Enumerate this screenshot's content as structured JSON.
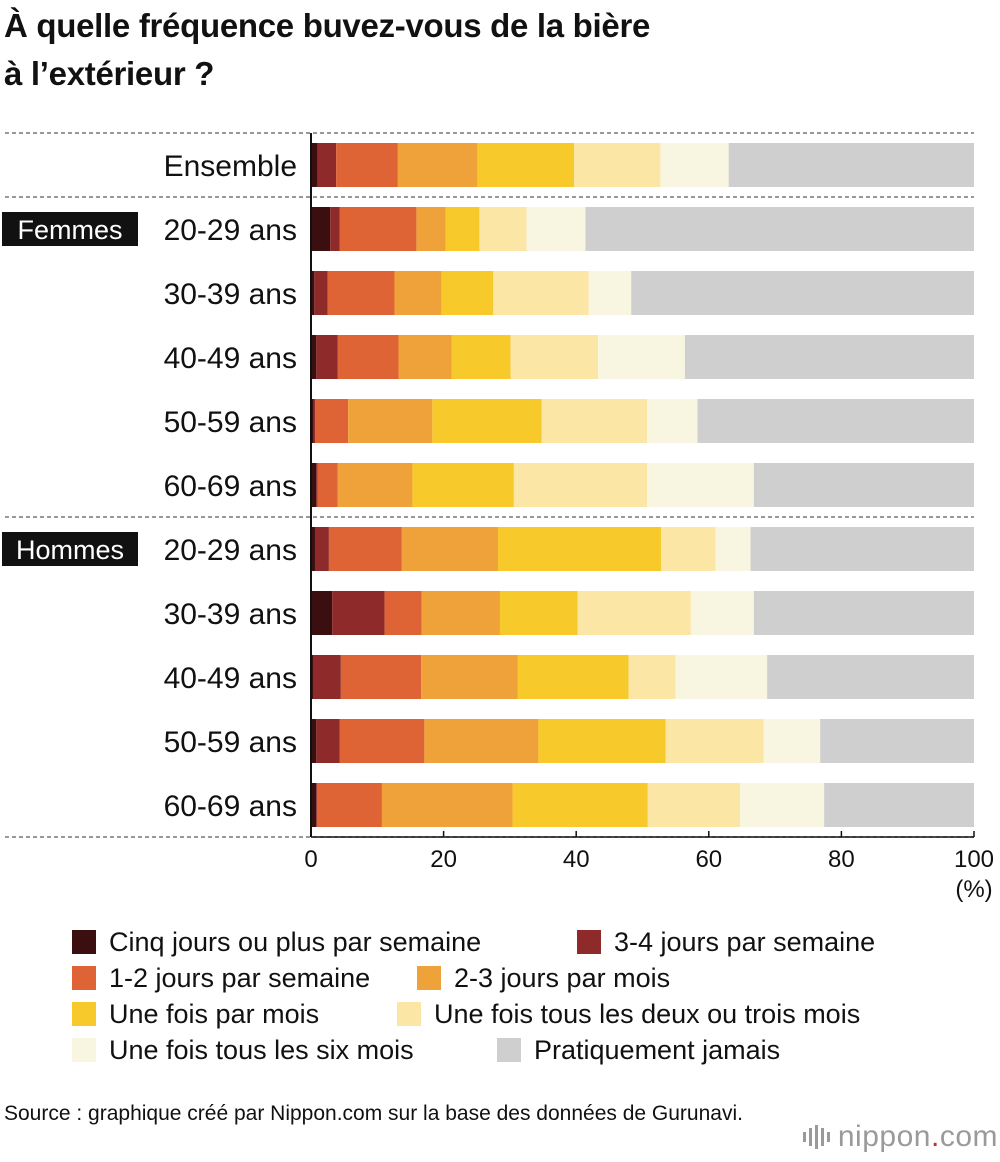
{
  "title_lines": [
    "À quelle fréquence buvez-vous de la bière",
    "à l’extérieur ?"
  ],
  "groups": [
    {
      "label": "Femmes",
      "first_row": 1,
      "last_row": 5
    },
    {
      "label": "Hommes",
      "first_row": 6,
      "last_row": 10
    }
  ],
  "chart_data": {
    "type": "bar",
    "orientation": "horizontal",
    "stacked": true,
    "title": "À quelle fréquence buvez-vous de la bière à l’extérieur ?",
    "categories": [
      "Ensemble",
      "20-29 ans",
      "30-39 ans",
      "40-49 ans",
      "50-59 ans",
      "60-69 ans",
      "20-29 ans",
      "30-39 ans",
      "40-49 ans",
      "50-59 ans",
      "60-69 ans"
    ],
    "xlim": [
      0,
      100
    ],
    "xticks": [
      0,
      20,
      40,
      60,
      80,
      100
    ],
    "xunit": "(%)",
    "series": [
      {
        "name": "Cinq jours ou plus par semaine",
        "color": "#3b0f0f",
        "values": [
          1.0,
          2.9,
          0.5,
          0.8,
          0.4,
          0.8,
          0.6,
          3.2,
          0.3,
          0.8,
          0.8
        ]
      },
      {
        "name": "3-4 jours par semaine",
        "color": "#8e2a2a",
        "values": [
          2.8,
          1.4,
          2.0,
          3.2,
          0.2,
          0.2,
          2.1,
          7.9,
          4.2,
          3.5,
          0.1
        ]
      },
      {
        "name": "1-2 jours par semaine",
        "color": "#de6335",
        "values": [
          9.3,
          11.6,
          10.1,
          9.2,
          5.0,
          3.0,
          11.0,
          5.6,
          12.1,
          12.8,
          9.8
        ]
      },
      {
        "name": "2-3 jours par mois",
        "color": "#f0a23a",
        "values": [
          12.0,
          4.4,
          7.1,
          8.0,
          12.7,
          11.3,
          14.5,
          11.8,
          14.6,
          17.2,
          19.7
        ]
      },
      {
        "name": "Une fois par mois",
        "color": "#f7c92a",
        "values": [
          14.6,
          5.1,
          7.8,
          8.9,
          16.5,
          15.3,
          24.6,
          11.7,
          16.7,
          19.2,
          20.4
        ]
      },
      {
        "name": "Une fois tous les deux ou trois mois",
        "color": "#fbe6a6",
        "values": [
          13.0,
          7.1,
          14.4,
          13.2,
          15.9,
          20.1,
          8.2,
          17.1,
          7.1,
          14.8,
          13.9
        ]
      },
      {
        "name": "Une fois tous les six mois",
        "color": "#f8f5e0",
        "values": [
          10.3,
          8.9,
          6.4,
          13.1,
          7.6,
          16.1,
          5.3,
          9.5,
          13.8,
          8.5,
          12.7
        ]
      },
      {
        "name": "Pratiquement jamais",
        "color": "#cfcfcf",
        "values": [
          37.0,
          58.6,
          51.7,
          43.6,
          41.7,
          33.2,
          33.7,
          33.2,
          31.2,
          23.2,
          22.6
        ]
      }
    ]
  },
  "source_text": "Source : graphique créé par Nippon.com sur la base des données de Gurunavi.",
  "brand": {
    "name": "nippon",
    "dot": ".",
    "suffix": "com"
  }
}
